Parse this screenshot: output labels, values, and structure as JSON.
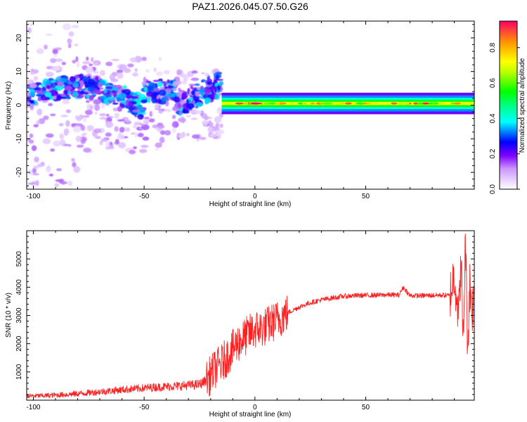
{
  "figure": {
    "title": "PAZ1.2026.045.07.50.G26"
  },
  "chart_data": [
    {
      "type": "heatmap",
      "title": "PAZ1.2026.045.07.50.G26",
      "xlabel": "Height of straight line (km)",
      "ylabel": "Frequency (Hz)",
      "xlim": [
        -103,
        99
      ],
      "ylim": [
        -25,
        25
      ],
      "xticks": [
        -100,
        -50,
        0,
        50
      ],
      "xtick_labels": [
        "-100",
        "-50",
        "0",
        "50"
      ],
      "yticks": [
        -20,
        -10,
        0,
        10,
        20
      ],
      "ytick_labels": [
        "-20",
        "-10",
        "0",
        "10",
        "20"
      ],
      "colorbar": {
        "label": "Normalized spectral amplitude",
        "range": [
          0,
          0.95
        ],
        "ticks": [
          0.0,
          0.2,
          0.4,
          0.6,
          0.8
        ],
        "tick_labels": [
          "0.0",
          "0.2",
          "0.4",
          "0.6",
          "0.8"
        ],
        "colormap": [
          "#ffffff",
          "#cc99ff",
          "#7f00ff",
          "#0000ff",
          "#00ffff",
          "#00ff00",
          "#ffff00",
          "#ff9900",
          "#ff0066"
        ]
      },
      "description_bands": {
        "scatter_region_x": [
          -103,
          -15
        ],
        "main_line_x": [
          -15,
          99
        ],
        "main_line_freq_hz": 0.5,
        "main_line_peak_amplitude": 0.95
      }
    },
    {
      "type": "line",
      "xlabel": "Height of straight line (km)",
      "ylabel": "SNR (10 * v/v)",
      "xlim": [
        -103,
        99
      ],
      "ylim": [
        0,
        6000
      ],
      "xticks": [
        -100,
        -50,
        0,
        50
      ],
      "xtick_labels": [
        "-100",
        "-50",
        "0",
        "50"
      ],
      "yticks": [
        1000,
        2000,
        3000,
        4000,
        5000
      ],
      "ytick_labels": [
        "1000",
        "2000",
        "3000",
        "4000",
        "5000"
      ],
      "series": [
        {
          "name": "SNR",
          "color": "#ff2020",
          "x": [
            -103,
            -95,
            -90,
            -85,
            -80,
            -75,
            -70,
            -65,
            -60,
            -55,
            -50,
            -45,
            -40,
            -35,
            -30,
            -25,
            -22,
            -20,
            -18,
            -15,
            -12,
            -10,
            -8,
            -5,
            -2,
            0,
            3,
            5,
            8,
            10,
            13,
            15,
            20,
            25,
            30,
            35,
            40,
            45,
            50,
            55,
            60,
            65,
            67,
            70,
            75,
            80,
            85,
            88,
            90,
            92,
            93,
            94,
            95,
            96,
            97,
            98,
            99
          ],
          "values": [
            150,
            160,
            180,
            200,
            230,
            260,
            300,
            330,
            370,
            400,
            430,
            460,
            480,
            500,
            530,
            560,
            700,
            900,
            1100,
            1300,
            1600,
            1800,
            2000,
            2200,
            2400,
            2500,
            2550,
            2600,
            2750,
            2850,
            3000,
            3100,
            3300,
            3450,
            3550,
            3620,
            3680,
            3700,
            3710,
            3720,
            3730,
            3720,
            4000,
            3700,
            3700,
            3710,
            3720,
            3700,
            4500,
            3000,
            5000,
            2000,
            5800,
            1800,
            4200,
            3200,
            3700
          ]
        }
      ]
    }
  ]
}
